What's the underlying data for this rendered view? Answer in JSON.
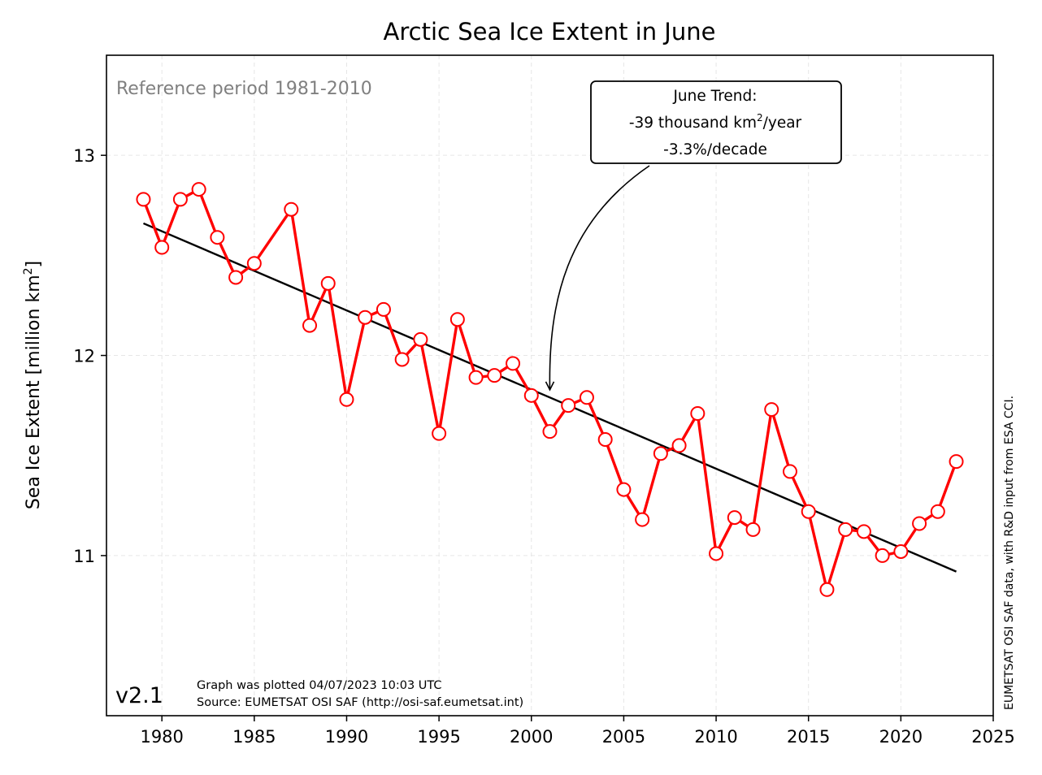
{
  "chart_data": {
    "type": "line",
    "title": "Arctic Sea Ice Extent in June",
    "ylabel": "Sea Ice Extent [million km²]",
    "xlim": [
      1977,
      2025
    ],
    "ylim": [
      10.2,
      13.5
    ],
    "xticks": [
      "1980",
      "1985",
      "1990",
      "1995",
      "2000",
      "2005",
      "2010",
      "2015",
      "2020",
      "2025"
    ],
    "yticks": [
      "11",
      "12",
      "13"
    ],
    "grid": true,
    "series": [
      {
        "color": "#ff0000",
        "x": [
          1979,
          1980,
          1981,
          1982,
          1983,
          1984,
          1985,
          1987,
          1988,
          1989,
          1990,
          1991,
          1992,
          1993,
          1994,
          1995,
          1996,
          1997,
          1998,
          1999,
          2000,
          2001,
          2002,
          2003,
          2004,
          2005,
          2006,
          2007,
          2008,
          2009,
          2010,
          2011,
          2012,
          2013,
          2014,
          2015,
          2016,
          2017,
          2018,
          2019,
          2020,
          2021,
          2022,
          2023
        ],
        "y": [
          12.78,
          12.54,
          12.78,
          12.83,
          12.59,
          12.39,
          12.46,
          12.73,
          12.15,
          12.36,
          11.78,
          12.19,
          12.23,
          11.98,
          12.08,
          11.61,
          12.18,
          11.89,
          11.9,
          11.96,
          11.8,
          11.62,
          11.75,
          11.79,
          11.58,
          11.33,
          11.18,
          11.51,
          11.55,
          11.71,
          11.01,
          11.19,
          11.13,
          11.73,
          11.42,
          11.22,
          10.83,
          11.13,
          11.12,
          11.0,
          11.02,
          11.16,
          11.22,
          11.47
        ]
      }
    ],
    "trend": {
      "color": "#000000",
      "x": [
        1979,
        2023
      ],
      "y": [
        12.66,
        10.92
      ]
    },
    "annotations": {
      "reference": "Reference period 1981-2010",
      "trend_box": {
        "line1": "June Trend:",
        "line2_prefix": "-39 thousand km",
        "line2_sup": "2",
        "line2_suffix": "/year",
        "line3": "-3.3%/decade",
        "arrow_target": [
          2001,
          11.82
        ]
      },
      "version": "v2.1",
      "plotted": "Graph was plotted 04/07/2023 10:03 UTC",
      "source": "Source: EUMETSAT OSI SAF (http://osi-saf.eumetsat.int)",
      "side_note": "EUMETSAT OSI SAF data, with R&D input from ESA CCI."
    }
  }
}
